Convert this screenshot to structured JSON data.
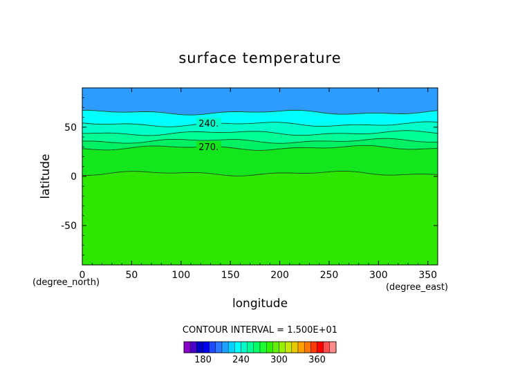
{
  "chart_data": {
    "type": "heatmap",
    "title": "surface temperature",
    "xlabel": "longitude",
    "ylabel": "latitude",
    "x_unit": "(degree_east)",
    "y_unit": "(degree_north)",
    "xlim": [
      0,
      360
    ],
    "ylim": [
      -90,
      90
    ],
    "x_ticks": [
      "0",
      "50",
      "100",
      "150",
      "200",
      "250",
      "300",
      "350"
    ],
    "y_ticks": [
      "50",
      "0",
      "-50"
    ],
    "contour_labels": [
      "240.",
      "270."
    ],
    "contour_interval_text": "CONTOUR INTERVAL = 1.500E+01",
    "colorbar_ticks": [
      "180",
      "240",
      "300",
      "360"
    ],
    "colorbar_colors": [
      "#8a00c8",
      "#4b00c8",
      "#0000c8",
      "#0000f0",
      "#1e4bff",
      "#2d78ff",
      "#1ea0ff",
      "#00d2ff",
      "#00ffff",
      "#00ffc8",
      "#00ff96",
      "#00ff64",
      "#1eff32",
      "#32f000",
      "#64f000",
      "#96f000",
      "#c8e600",
      "#e6c800",
      "#ffa000",
      "#ff7800",
      "#ff3c00",
      "#ff0000",
      "#ff5050",
      "#ff8c8c"
    ],
    "bands": [
      {
        "from": 90,
        "to": 65,
        "color": "#2d9bff"
      },
      {
        "from": 65,
        "to": 53,
        "color": "#00ffff"
      },
      {
        "from": 53,
        "to": 44,
        "color": "#00ffc8"
      },
      {
        "from": 44,
        "to": 36,
        "color": "#00ff96"
      },
      {
        "from": 36,
        "to": 29,
        "color": "#00f064"
      },
      {
        "from": 29,
        "to": 3,
        "color": "#14e61e"
      },
      {
        "from": 3,
        "to": -90,
        "color": "#2ee600"
      }
    ],
    "contours": [
      {
        "label": "",
        "lat": 65
      },
      {
        "label": "240.",
        "lat": 53
      },
      {
        "label": "",
        "lat": 44
      },
      {
        "label": "",
        "lat": 36
      },
      {
        "label": "270.",
        "lat": 29
      },
      {
        "label": "",
        "lat": 3
      }
    ]
  }
}
